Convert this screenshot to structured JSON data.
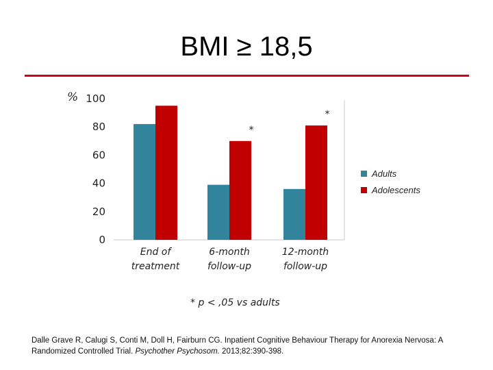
{
  "title": "BMI ≥ 18,5",
  "colors": {
    "adults": "#31849b",
    "adolescents": "#c00000",
    "rule": "#d0021b"
  },
  "chart_data": {
    "type": "bar",
    "title": "",
    "ylabel": "%",
    "xlabel": "",
    "ylim": [
      0,
      100
    ],
    "yticks": [
      0,
      20,
      40,
      60,
      80,
      100
    ],
    "categories": [
      [
        "End of",
        "treatment"
      ],
      [
        "6-month",
        "follow-up"
      ],
      [
        "12-month",
        "follow-up"
      ]
    ],
    "series": [
      {
        "name": "Adults",
        "values": [
          82,
          39,
          36
        ]
      },
      {
        "name": "Adolescents",
        "values": [
          95,
          70,
          81
        ]
      }
    ],
    "annotations": [
      {
        "category_index": 1,
        "series_index": 1,
        "text": "*"
      },
      {
        "category_index": 2,
        "series_index": 1,
        "text": "*"
      }
    ],
    "legend_position": "right",
    "grid": false
  },
  "footnote": "* p < ,05 vs adults",
  "citation": {
    "text": "Dalle Grave R, Calugi S, Conti M, Doll H, Fairburn CG. Inpatient Cognitive Behaviour Therapy for Anorexia Nervosa: A Randomized Controlled Trial. ",
    "journal": "Psychother Psychosom.",
    "details": " 2013;82:390-398."
  }
}
